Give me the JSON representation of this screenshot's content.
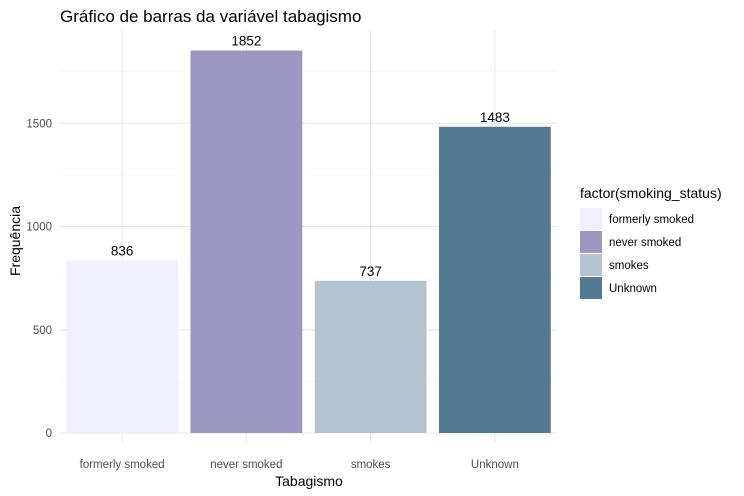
{
  "chart_data": {
    "type": "bar",
    "title": "Gráfico de barras da variável tabagismo",
    "xlabel": "Tabagismo",
    "ylabel": "Frequência",
    "categories": [
      "formerly smoked",
      "never smoked",
      "smokes",
      "Unknown"
    ],
    "values": [
      836,
      1852,
      737,
      1483
    ],
    "data_labels": [
      "836",
      "1852",
      "737",
      "1483"
    ],
    "colors": [
      "#efefff",
      "#9b97c1",
      "#b3c4d0",
      "#527a93"
    ],
    "ylim": [
      0,
      1950
    ],
    "y_ticks": [
      0,
      500,
      1000,
      1500
    ],
    "y_tick_labels": [
      "0",
      "500",
      "1000",
      "1500"
    ],
    "grid": true,
    "legend": {
      "title": "factor(smoking_status)",
      "placement": "right",
      "entries": [
        "formerly smoked",
        "never smoked",
        "smokes",
        "Unknown"
      ]
    }
  }
}
